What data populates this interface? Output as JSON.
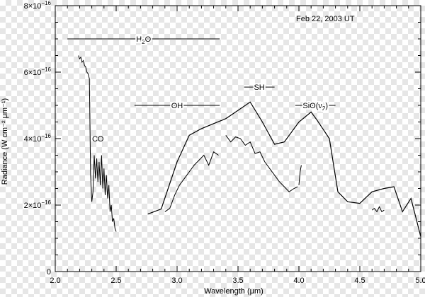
{
  "chart_data": {
    "type": "line",
    "title": "",
    "date_label": "Feb 22, 2003 UT",
    "xlabel": "Wavelength (μm)",
    "ylabel": "Radiance (W cm⁻² μm⁻¹)",
    "xlim": [
      2.0,
      5.0
    ],
    "ylim": [
      0,
      8e-16
    ],
    "x_ticks": [
      {
        "value": 2.0,
        "label": "2.0"
      },
      {
        "value": 2.5,
        "label": "2.5"
      },
      {
        "value": 3.0,
        "label": "3.0"
      },
      {
        "value": 3.5,
        "label": "3.5"
      },
      {
        "value": 4.0,
        "label": "4.0"
      },
      {
        "value": 4.5,
        "label": "4.5"
      },
      {
        "value": 5.0,
        "label": "5.0"
      }
    ],
    "y_ticks": [
      {
        "value": 0,
        "mantissa": "0",
        "exponent": ""
      },
      {
        "value": 2e-16,
        "mantissa": "2×10",
        "exponent": "−16"
      },
      {
        "value": 4e-16,
        "mantissa": "4×10",
        "exponent": "−16"
      },
      {
        "value": 6e-16,
        "mantissa": "6×10",
        "exponent": "−16"
      },
      {
        "value": 8e-16,
        "mantissa": "8×10",
        "exponent": "−16"
      }
    ],
    "grid": false,
    "series": [
      {
        "role": "model",
        "x": [
          2.76,
          2.87,
          3.0,
          3.1,
          3.2,
          3.3,
          3.4,
          3.5,
          3.6,
          3.7,
          3.8,
          3.88,
          4.0,
          4.1,
          4.15,
          4.25,
          4.32,
          4.4,
          4.5,
          4.6,
          4.7,
          4.78,
          4.85,
          4.92,
          5.0
        ],
        "y": [
          1.73e-16,
          1.88e-16,
          3.3e-16,
          4.1e-16,
          4.3e-16,
          4.45e-16,
          4.6e-16,
          4.85e-16,
          5.1e-16,
          4.5e-16,
          3.83e-16,
          3.9e-16,
          4.5e-16,
          4.8e-16,
          4.55e-16,
          4e-16,
          2.4e-16,
          2.1e-16,
          2.05e-16,
          2.4e-16,
          2.5e-16,
          2.55e-16,
          1.8e-16,
          2.2e-16,
          1.05e-16
        ]
      },
      {
        "role": "observed",
        "segments": [
          {
            "x": [
              2.19,
              2.2,
              2.21,
              2.22,
              2.23,
              2.24,
              2.25,
              2.26,
              2.27,
              2.28,
              2.29,
              2.3,
              2.31,
              2.32,
              2.33,
              2.34,
              2.35,
              2.36,
              2.37,
              2.38,
              2.39,
              2.4,
              2.41,
              2.42,
              2.43,
              2.44,
              2.45,
              2.46,
              2.47,
              2.48,
              2.49,
              2.5
            ],
            "y": [
              6.5e-16,
              6.4e-16,
              6.45e-16,
              6.3e-16,
              6.35e-16,
              6.2e-16,
              6.15e-16,
              6e-16,
              5.95e-16,
              5.8e-16,
              2.9e-16,
              2.1e-16,
              2.4e-16,
              3.5e-16,
              2.8e-16,
              3.4e-16,
              2.7e-16,
              3.3e-16,
              2.6e-16,
              3.5e-16,
              2.5e-16,
              3.1e-16,
              2.3e-16,
              2.9e-16,
              2.2e-16,
              2.6e-16,
              1.8e-16,
              2e-16,
              1.5e-16,
              1.6e-16,
              1.3e-16,
              1.2e-16
            ]
          },
          {
            "x": [
              2.9,
              2.94,
              2.98,
              3.02,
              3.06,
              3.1,
              3.14,
              3.18,
              3.22,
              3.26,
              3.3,
              3.34
            ],
            "y": [
              1.8e-16,
              1.9e-16,
              2.3e-16,
              2.6e-16,
              2.8e-16,
              3e-16,
              3.2e-16,
              3.35e-16,
              3.5e-16,
              3.2e-16,
              3.6e-16,
              3.5e-16
            ]
          },
          {
            "x": [
              3.4,
              3.44,
              3.48,
              3.52,
              3.56,
              3.6,
              3.64,
              3.68,
              3.72,
              3.76,
              3.8,
              3.84,
              3.88,
              3.92,
              3.96,
              3.99
            ],
            "y": [
              4.1e-16,
              3.9e-16,
              4.05e-16,
              4e-16,
              3.8e-16,
              3.9e-16,
              3.55e-16,
              3.6e-16,
              3.3e-16,
              3.1e-16,
              2.9e-16,
              2.7e-16,
              2.55e-16,
              2.4e-16,
              2.5e-16,
              2.55e-16
            ]
          },
          {
            "x": [
              4.0,
              4.01,
              4.02
            ],
            "y": [
              2.6e-16,
              3e-16,
              3.2e-16
            ]
          },
          {
            "x": [
              4.6,
              4.62,
              4.64,
              4.66,
              4.68,
              4.7
            ],
            "y": [
              1.85e-16,
              1.9e-16,
              1.8e-16,
              1.95e-16,
              1.8e-16,
              1.85e-16
            ]
          }
        ]
      }
    ],
    "annotations": [
      {
        "label_base": "H",
        "label_sub": "2",
        "label_after": "O",
        "x_start": 2.1,
        "x_end": 3.35,
        "y": 7e-16
      },
      {
        "label": "OH",
        "x_start": 2.65,
        "x_end": 3.35,
        "y": 5e-16
      },
      {
        "label": "SH",
        "x_start": 3.55,
        "x_end": 3.8,
        "y": 5.55e-16
      },
      {
        "label_base": "SiO(ν",
        "label_sub": "2",
        "label_after": ")",
        "x_start": 3.97,
        "x_end": 4.3,
        "y": 5e-16
      },
      {
        "label": "CO",
        "x": 2.35,
        "y": 4e-16
      }
    ]
  }
}
